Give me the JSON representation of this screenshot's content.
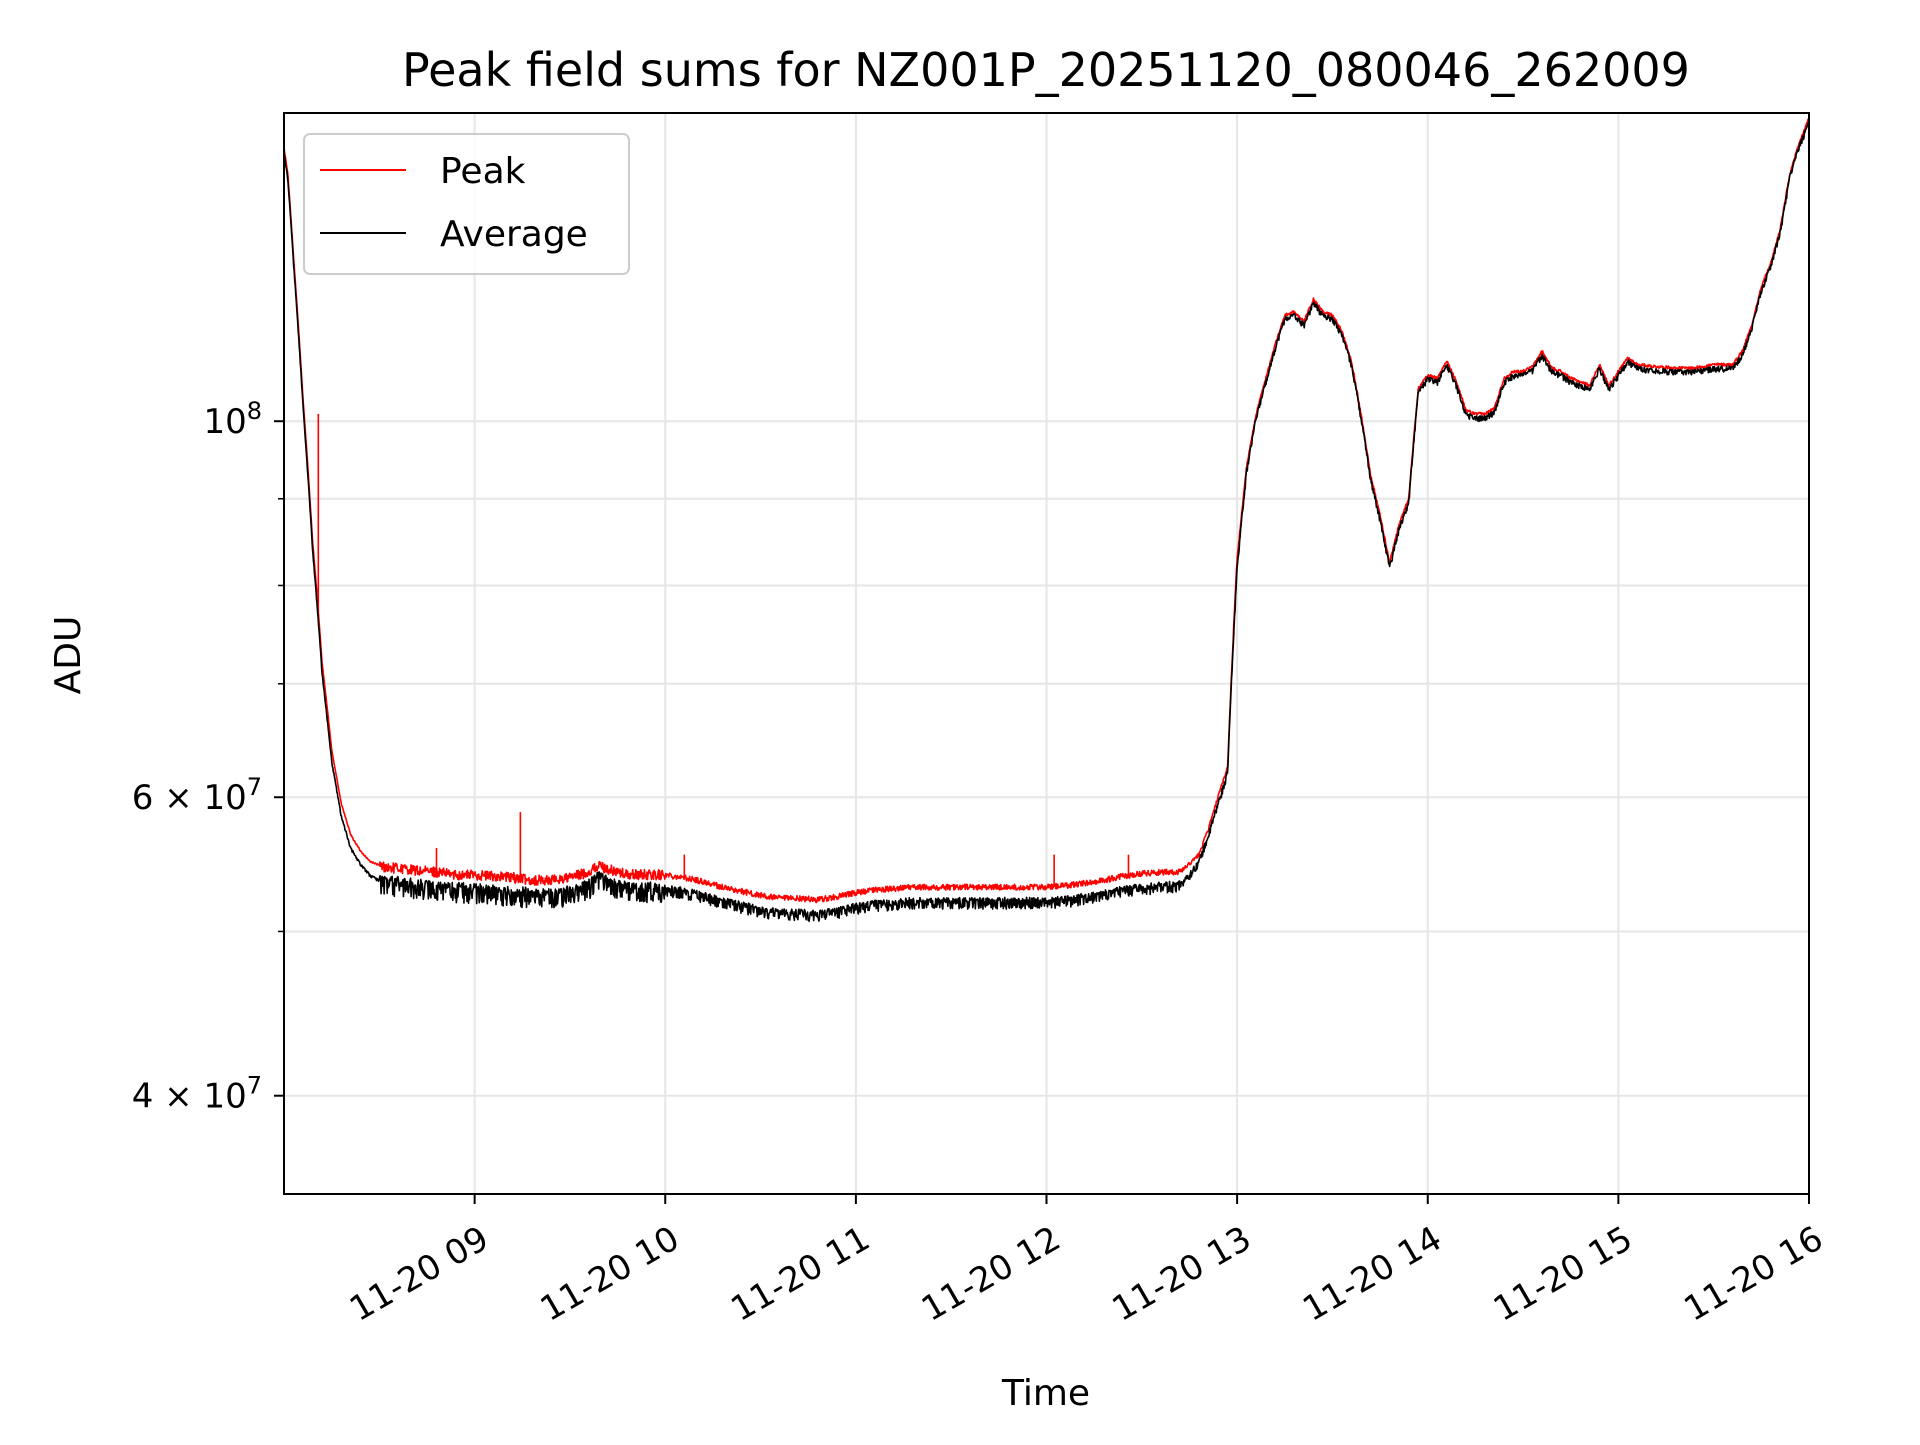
{
  "chart_data": {
    "type": "line",
    "title": "Peak field sums for NZ001P_20251120_080046_262009",
    "xlabel": "Time",
    "ylabel": "ADU",
    "yscale": "log",
    "xlim": [
      8.0,
      16.0
    ],
    "ylim": [
      35000000,
      152000000
    ],
    "grid": true,
    "legend_position": "top-left",
    "x_ticks": [
      {
        "value": 9,
        "label": "11-20 09"
      },
      {
        "value": 10,
        "label": "11-20 10"
      },
      {
        "value": 11,
        "label": "11-20 11"
      },
      {
        "value": 12,
        "label": "11-20 12"
      },
      {
        "value": 13,
        "label": "11-20 13"
      },
      {
        "value": 14,
        "label": "11-20 14"
      },
      {
        "value": 15,
        "label": "11-20 15"
      },
      {
        "value": 16,
        "label": "11-20 16"
      }
    ],
    "y_major_ticks": [
      {
        "value": 40000000,
        "label_base": "4 × 10",
        "label_exp": "7"
      },
      {
        "value": 60000000,
        "label_base": "6 × 10",
        "label_exp": "7"
      },
      {
        "value": 100000000,
        "label_base": "10",
        "label_exp": "8"
      }
    ],
    "y_minor_ticks": [
      50000000,
      70000000,
      80000000,
      90000000
    ],
    "series": [
      {
        "name": "Peak",
        "color": "#ff0000",
        "x": [
          8.0,
          8.02,
          8.05,
          8.1,
          8.15,
          8.2,
          8.25,
          8.3,
          8.35,
          8.4,
          8.45,
          8.5,
          8.55,
          8.6,
          8.7,
          8.8,
          8.9,
          9.0,
          9.1,
          9.2,
          9.3,
          9.4,
          9.5,
          9.6,
          9.65,
          9.7,
          9.8,
          9.9,
          10.0,
          10.1,
          10.2,
          10.3,
          10.4,
          10.5,
          10.6,
          10.7,
          10.8,
          10.9,
          11.0,
          11.1,
          11.2,
          11.3,
          11.4,
          11.5,
          11.6,
          11.7,
          11.8,
          11.9,
          12.0,
          12.1,
          12.2,
          12.3,
          12.4,
          12.5,
          12.6,
          12.7,
          12.75,
          12.8,
          12.85,
          12.9,
          12.95,
          13.0,
          13.05,
          13.1,
          13.15,
          13.2,
          13.25,
          13.3,
          13.35,
          13.4,
          13.45,
          13.5,
          13.55,
          13.6,
          13.65,
          13.7,
          13.75,
          13.8,
          13.85,
          13.9,
          13.95,
          14.0,
          14.05,
          14.1,
          14.15,
          14.2,
          14.25,
          14.3,
          14.35,
          14.4,
          14.45,
          14.5,
          14.55,
          14.6,
          14.65,
          14.7,
          14.75,
          14.8,
          14.85,
          14.9,
          14.95,
          15.0,
          15.05,
          15.1,
          15.2,
          15.3,
          15.4,
          15.5,
          15.55,
          15.6,
          15.65,
          15.7,
          15.75,
          15.8,
          15.85,
          15.9,
          15.95,
          16.0
        ],
        "y": [
          145000000,
          140000000,
          125000000,
          103000000,
          85000000,
          72000000,
          64000000,
          59500000,
          57000000,
          55800000,
          55000000,
          54700000,
          54500000,
          54500000,
          54300000,
          54200000,
          54000000,
          54000000,
          53900000,
          53800000,
          53600000,
          53600000,
          53800000,
          54200000,
          54700000,
          54400000,
          54000000,
          54000000,
          54000000,
          53800000,
          53500000,
          53100000,
          52800000,
          52500000,
          52300000,
          52300000,
          52200000,
          52400000,
          52700000,
          52900000,
          53000000,
          53100000,
          53100000,
          53100000,
          53100000,
          53100000,
          53100000,
          53100000,
          53100000,
          53200000,
          53400000,
          53600000,
          53900000,
          54100000,
          54200000,
          54200000,
          54800000,
          55500000,
          57500000,
          60000000,
          62500000,
          83000000,
          94000000,
          101000000,
          106000000,
          111000000,
          115500000,
          116000000,
          114500000,
          118000000,
          116000000,
          115500000,
          113000000,
          108500000,
          101000000,
          93000000,
          88000000,
          82500000,
          87000000,
          90000000,
          104500000,
          106500000,
          106000000,
          108500000,
          105500000,
          101500000,
          101000000,
          101000000,
          101800000,
          106000000,
          107000000,
          107000000,
          107700000,
          110000000,
          107500000,
          107000000,
          106000000,
          105500000,
          105000000,
          108000000,
          105000000,
          107000000,
          109000000,
          108000000,
          107700000,
          107500000,
          107500000,
          108000000,
          108000000,
          108000000,
          110000000,
          114000000,
          120000000,
          124000000,
          130000000,
          140000000,
          146000000,
          151000000
        ],
        "spikes": [
          {
            "x": 8.18,
            "y": 101000000
          },
          {
            "x": 9.24,
            "y": 58800000
          },
          {
            "x": 8.8,
            "y": 56000000
          },
          {
            "x": 10.1,
            "y": 55500000
          },
          {
            "x": 12.04,
            "y": 55500000
          },
          {
            "x": 12.43,
            "y": 55500000
          }
        ]
      },
      {
        "name": "Average",
        "color": "#000000",
        "x": [
          8.0,
          8.02,
          8.05,
          8.1,
          8.15,
          8.2,
          8.25,
          8.3,
          8.35,
          8.4,
          8.45,
          8.5,
          8.55,
          8.6,
          8.7,
          8.8,
          8.9,
          9.0,
          9.1,
          9.2,
          9.3,
          9.4,
          9.5,
          9.6,
          9.65,
          9.7,
          9.8,
          9.9,
          10.0,
          10.1,
          10.2,
          10.3,
          10.4,
          10.5,
          10.6,
          10.7,
          10.8,
          10.9,
          11.0,
          11.1,
          11.2,
          11.3,
          11.4,
          11.5,
          11.6,
          11.7,
          11.8,
          11.9,
          12.0,
          12.1,
          12.2,
          12.3,
          12.4,
          12.5,
          12.6,
          12.7,
          12.75,
          12.8,
          12.85,
          12.9,
          12.95,
          13.0,
          13.05,
          13.1,
          13.15,
          13.2,
          13.25,
          13.3,
          13.35,
          13.4,
          13.45,
          13.5,
          13.55,
          13.6,
          13.65,
          13.7,
          13.75,
          13.8,
          13.85,
          13.9,
          13.95,
          14.0,
          14.05,
          14.1,
          14.15,
          14.2,
          14.25,
          14.3,
          14.35,
          14.4,
          14.45,
          14.5,
          14.55,
          14.6,
          14.65,
          14.7,
          14.75,
          14.8,
          14.85,
          14.9,
          14.95,
          15.0,
          15.05,
          15.1,
          15.2,
          15.3,
          15.4,
          15.5,
          15.55,
          15.6,
          15.65,
          15.7,
          15.75,
          15.8,
          15.85,
          15.9,
          15.95,
          16.0
        ],
        "y": [
          144000000,
          139000000,
          124000000,
          102000000,
          84000000,
          71000000,
          63000000,
          58500000,
          56000000,
          54800000,
          54000000,
          53600000,
          53400000,
          53400000,
          53200000,
          53100000,
          53000000,
          52900000,
          52800000,
          52700000,
          52600000,
          52500000,
          52800000,
          53200000,
          53800000,
          53400000,
          53000000,
          53000000,
          53000000,
          52800000,
          52500000,
          52100000,
          51800000,
          51500000,
          51300000,
          51300000,
          51200000,
          51400000,
          51700000,
          51900000,
          52000000,
          52100000,
          52100000,
          52100000,
          52100000,
          52100000,
          52100000,
          52100000,
          52100000,
          52200000,
          52400000,
          52600000,
          52900000,
          53100000,
          53200000,
          53300000,
          54000000,
          55000000,
          57000000,
          59500000,
          62000000,
          82000000,
          93500000,
          100500000,
          105500000,
          110500000,
          115000000,
          115500000,
          114000000,
          117500000,
          115500000,
          115000000,
          112500000,
          108000000,
          100500000,
          92500000,
          87500000,
          82000000,
          86500000,
          89500000,
          104000000,
          106000000,
          105500000,
          108000000,
          105000000,
          101000000,
          100500000,
          100500000,
          101300000,
          105500000,
          106500000,
          106500000,
          107200000,
          109500000,
          107000000,
          106500000,
          105500000,
          105000000,
          104500000,
          107500000,
          104500000,
          106500000,
          108500000,
          107500000,
          107200000,
          107000000,
          107000000,
          107500000,
          107500000,
          107500000,
          109500000,
          113500000,
          119500000,
          123500000,
          129500000,
          139500000,
          145500000,
          150000000
        ]
      }
    ]
  }
}
